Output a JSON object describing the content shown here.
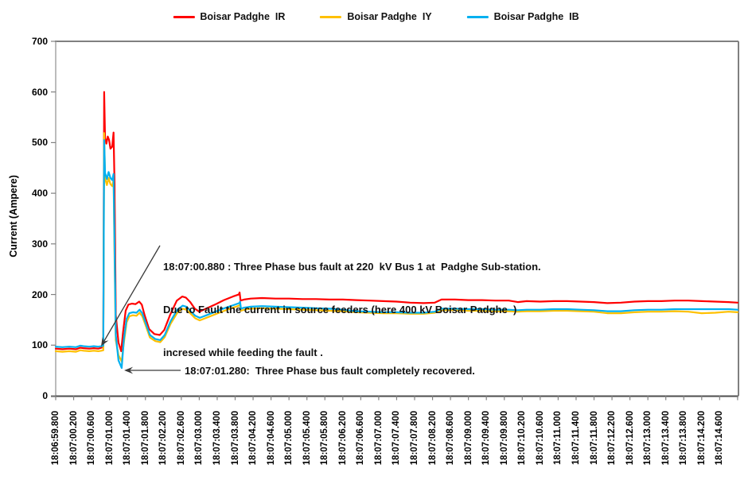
{
  "legend": {
    "items": [
      {
        "label": "Boisar Padghe  IR",
        "color": "#FF0000"
      },
      {
        "label": "Boisar Padghe  IY",
        "color": "#FFC000"
      },
      {
        "label": "Boisar Padghe  IB",
        "color": "#00B0F0"
      }
    ]
  },
  "y_axis": {
    "title": "Current (Ampere)",
    "ticks": [
      "0",
      "100",
      "200",
      "300",
      "400",
      "500",
      "600",
      "700"
    ],
    "min": 0,
    "max": 700
  },
  "x_axis": {
    "labels": [
      "18:06:59.800",
      "18:07:00.200",
      "18:07:00.600",
      "18:07:01.000",
      "18:07:01.400",
      "18:07:01.800",
      "18:07:02.200",
      "18:07:02.600",
      "18:07:03.000",
      "18:07:03.400",
      "18:07:03.800",
      "18:07:04.200",
      "18:07:04.600",
      "18:07:05.000",
      "18:07:05.400",
      "18:07:05.800",
      "18:07:06.200",
      "18:07:06.600",
      "18:07:07.000",
      "18:07:07.400",
      "18:07:07.800",
      "18:07:08.200",
      "18:07:08.600",
      "18:07:09.000",
      "18:07:09.400",
      "18:07:09.800",
      "18:07:10.200",
      "18:07:10.600",
      "18:07:11.000",
      "18:07:11.400",
      "18:07:11.800",
      "18:07:12.200",
      "18:07:12.600",
      "18:07:13.000",
      "18:07:13.400",
      "18:07:13.800",
      "18:07:14.200",
      "18:07:14.600"
    ]
  },
  "annotations": {
    "fault": {
      "line1": "18:07:00.880 : Three Phase bus fault at 220  kV Bus 1 at  Padghe Sub-station.",
      "line2": "Due to Fault the current in source feeders (here 400 kV Boisar Padghe  )",
      "line3": "incresed while feeding the fault ."
    },
    "recovery": {
      "text": "18:07:01.280:  Three Phase bus fault completely recovered."
    }
  },
  "chart_data": {
    "type": "line",
    "title": "",
    "xlabel": "",
    "ylabel": "Current (Ampere)",
    "ylim": [
      0,
      700
    ],
    "grid": false,
    "legend_position": "top-center",
    "x_unit": "seconds offset from 18:06:59.800 (x tick labels every 0.4 s)",
    "events": [
      {
        "time": "18:07:00.880",
        "description": "Three Phase bus fault at 220 kV Bus 1 at Padghe Sub-station; source feeder current increased while feeding the fault"
      },
      {
        "time": "18:07:01.280",
        "description": "Three Phase bus fault completely recovered"
      }
    ],
    "series": [
      {
        "name": "Boisar Padghe  IR",
        "color": "#FF0000",
        "points": [
          [
            0,
            93
          ],
          [
            0.15,
            92
          ],
          [
            0.3,
            93
          ],
          [
            0.45,
            92
          ],
          [
            0.55,
            95
          ],
          [
            0.62,
            94
          ],
          [
            0.75,
            93
          ],
          [
            0.85,
            94
          ],
          [
            0.95,
            93
          ],
          [
            1.02,
            95
          ],
          [
            1.06,
            96
          ],
          [
            1.08,
            600
          ],
          [
            1.1,
            510
          ],
          [
            1.13,
            498
          ],
          [
            1.16,
            512
          ],
          [
            1.19,
            505
          ],
          [
            1.22,
            488
          ],
          [
            1.26,
            492
          ],
          [
            1.29,
            520
          ],
          [
            1.31,
            420
          ],
          [
            1.34,
            160
          ],
          [
            1.4,
            105
          ],
          [
            1.46,
            88
          ],
          [
            1.5,
            125
          ],
          [
            1.56,
            168
          ],
          [
            1.62,
            180
          ],
          [
            1.7,
            182
          ],
          [
            1.78,
            181
          ],
          [
            1.86,
            186
          ],
          [
            1.92,
            180
          ],
          [
            1.98,
            160
          ],
          [
            2.08,
            132
          ],
          [
            2.2,
            122
          ],
          [
            2.32,
            120
          ],
          [
            2.42,
            130
          ],
          [
            2.55,
            160
          ],
          [
            2.7,
            188
          ],
          [
            2.82,
            196
          ],
          [
            2.9,
            194
          ],
          [
            3.0,
            185
          ],
          [
            3.1,
            172
          ],
          [
            3.2,
            166
          ],
          [
            3.35,
            172
          ],
          [
            3.55,
            180
          ],
          [
            3.75,
            189
          ],
          [
            3.95,
            196
          ],
          [
            4.08,
            200
          ],
          [
            4.1,
            204
          ],
          [
            4.12,
            188
          ],
          [
            4.2,
            190
          ],
          [
            4.35,
            192
          ],
          [
            4.6,
            193
          ],
          [
            4.9,
            192
          ],
          [
            5.2,
            192
          ],
          [
            5.5,
            191
          ],
          [
            5.8,
            191
          ],
          [
            6.1,
            190
          ],
          [
            6.4,
            190
          ],
          [
            6.7,
            189
          ],
          [
            7.0,
            188
          ],
          [
            7.3,
            187
          ],
          [
            7.6,
            186
          ],
          [
            7.9,
            184
          ],
          [
            8.2,
            183
          ],
          [
            8.45,
            184
          ],
          [
            8.6,
            190
          ],
          [
            8.9,
            190
          ],
          [
            9.2,
            189
          ],
          [
            9.5,
            189
          ],
          [
            9.8,
            188
          ],
          [
            10.1,
            188
          ],
          [
            10.3,
            185
          ],
          [
            10.5,
            187
          ],
          [
            10.8,
            186
          ],
          [
            11.1,
            187
          ],
          [
            11.4,
            187
          ],
          [
            11.7,
            186
          ],
          [
            12.0,
            185
          ],
          [
            12.3,
            183
          ],
          [
            12.6,
            184
          ],
          [
            12.9,
            186
          ],
          [
            13.2,
            187
          ],
          [
            13.5,
            187
          ],
          [
            13.8,
            188
          ],
          [
            14.1,
            188
          ],
          [
            14.4,
            187
          ],
          [
            14.7,
            186
          ],
          [
            15.0,
            185
          ],
          [
            15.2,
            184
          ]
        ]
      },
      {
        "name": "Boisar Padghe  IY",
        "color": "#FFC000",
        "points": [
          [
            0,
            88
          ],
          [
            0.15,
            87
          ],
          [
            0.3,
            88
          ],
          [
            0.45,
            87
          ],
          [
            0.55,
            90
          ],
          [
            0.62,
            89
          ],
          [
            0.75,
            88
          ],
          [
            0.85,
            89
          ],
          [
            0.95,
            88
          ],
          [
            1.02,
            89
          ],
          [
            1.06,
            90
          ],
          [
            1.08,
            519
          ],
          [
            1.1,
            430
          ],
          [
            1.14,
            416
          ],
          [
            1.18,
            430
          ],
          [
            1.22,
            418
          ],
          [
            1.26,
            414
          ],
          [
            1.29,
            426
          ],
          [
            1.31,
            280
          ],
          [
            1.34,
            110
          ],
          [
            1.4,
            80
          ],
          [
            1.47,
            68
          ],
          [
            1.52,
            105
          ],
          [
            1.58,
            145
          ],
          [
            1.64,
            157
          ],
          [
            1.72,
            159
          ],
          [
            1.8,
            158
          ],
          [
            1.87,
            164
          ],
          [
            1.93,
            157
          ],
          [
            2.0,
            140
          ],
          [
            2.1,
            115
          ],
          [
            2.22,
            108
          ],
          [
            2.33,
            106
          ],
          [
            2.43,
            116
          ],
          [
            2.56,
            142
          ],
          [
            2.71,
            164
          ],
          [
            2.83,
            172
          ],
          [
            2.91,
            170
          ],
          [
            3.01,
            162
          ],
          [
            3.11,
            153
          ],
          [
            3.21,
            149
          ],
          [
            3.36,
            154
          ],
          [
            3.56,
            161
          ],
          [
            3.76,
            168
          ],
          [
            3.96,
            174
          ],
          [
            4.09,
            178
          ],
          [
            4.11,
            181
          ],
          [
            4.13,
            168
          ],
          [
            4.2,
            170
          ],
          [
            4.35,
            172
          ],
          [
            4.6,
            173
          ],
          [
            4.9,
            172
          ],
          [
            5.2,
            171
          ],
          [
            5.5,
            170
          ],
          [
            5.8,
            169
          ],
          [
            6.1,
            168
          ],
          [
            6.4,
            167
          ],
          [
            6.7,
            165
          ],
          [
            7.0,
            164
          ],
          [
            7.3,
            163
          ],
          [
            7.6,
            163
          ],
          [
            7.9,
            162
          ],
          [
            8.2,
            162
          ],
          [
            8.45,
            164
          ],
          [
            8.6,
            169
          ],
          [
            8.9,
            169
          ],
          [
            9.2,
            168
          ],
          [
            9.5,
            168
          ],
          [
            9.8,
            167
          ],
          [
            10.1,
            167
          ],
          [
            10.3,
            166
          ],
          [
            10.5,
            167
          ],
          [
            10.8,
            167
          ],
          [
            11.1,
            168
          ],
          [
            11.4,
            168
          ],
          [
            11.7,
            167
          ],
          [
            12.0,
            166
          ],
          [
            12.3,
            163
          ],
          [
            12.6,
            163
          ],
          [
            12.9,
            165
          ],
          [
            13.2,
            166
          ],
          [
            13.5,
            166
          ],
          [
            13.8,
            167
          ],
          [
            14.1,
            166
          ],
          [
            14.4,
            163
          ],
          [
            14.7,
            164
          ],
          [
            15.0,
            166
          ],
          [
            15.2,
            165
          ]
        ]
      },
      {
        "name": "Boisar Padghe  IB",
        "color": "#00B0F0",
        "points": [
          [
            0,
            97
          ],
          [
            0.15,
            96
          ],
          [
            0.3,
            97
          ],
          [
            0.45,
            96
          ],
          [
            0.55,
            99
          ],
          [
            0.62,
            98
          ],
          [
            0.75,
            97
          ],
          [
            0.85,
            98
          ],
          [
            0.95,
            97
          ],
          [
            1.02,
            98
          ],
          [
            1.06,
            99
          ],
          [
            1.08,
            505
          ],
          [
            1.1,
            440
          ],
          [
            1.14,
            428
          ],
          [
            1.18,
            442
          ],
          [
            1.22,
            430
          ],
          [
            1.26,
            426
          ],
          [
            1.29,
            438
          ],
          [
            1.31,
            300
          ],
          [
            1.34,
            120
          ],
          [
            1.4,
            70
          ],
          [
            1.47,
            55
          ],
          [
            1.52,
            112
          ],
          [
            1.58,
            152
          ],
          [
            1.64,
            163
          ],
          [
            1.72,
            165
          ],
          [
            1.8,
            164
          ],
          [
            1.87,
            170
          ],
          [
            1.93,
            163
          ],
          [
            2.0,
            145
          ],
          [
            2.1,
            120
          ],
          [
            2.22,
            112
          ],
          [
            2.33,
            110
          ],
          [
            2.43,
            120
          ],
          [
            2.56,
            147
          ],
          [
            2.71,
            170
          ],
          [
            2.83,
            178
          ],
          [
            2.91,
            176
          ],
          [
            3.01,
            167
          ],
          [
            3.11,
            158
          ],
          [
            3.21,
            154
          ],
          [
            3.36,
            159
          ],
          [
            3.56,
            166
          ],
          [
            3.76,
            173
          ],
          [
            3.96,
            179
          ],
          [
            4.09,
            183
          ],
          [
            4.11,
            186
          ],
          [
            4.13,
            172
          ],
          [
            4.2,
            174
          ],
          [
            4.35,
            176
          ],
          [
            4.6,
            177
          ],
          [
            4.9,
            176
          ],
          [
            5.2,
            175
          ],
          [
            5.5,
            174
          ],
          [
            5.8,
            173
          ],
          [
            6.1,
            172
          ],
          [
            6.4,
            170
          ],
          [
            6.7,
            167
          ],
          [
            7.0,
            166
          ],
          [
            7.3,
            165
          ],
          [
            7.6,
            165
          ],
          [
            7.9,
            164
          ],
          [
            8.2,
            164
          ],
          [
            8.45,
            166
          ],
          [
            8.6,
            172
          ],
          [
            8.9,
            172
          ],
          [
            9.2,
            171
          ],
          [
            9.5,
            171
          ],
          [
            9.8,
            170
          ],
          [
            10.1,
            170
          ],
          [
            10.3,
            169
          ],
          [
            10.5,
            170
          ],
          [
            10.8,
            170
          ],
          [
            11.1,
            171
          ],
          [
            11.4,
            171
          ],
          [
            11.7,
            170
          ],
          [
            12.0,
            169
          ],
          [
            12.3,
            167
          ],
          [
            12.6,
            167
          ],
          [
            12.9,
            169
          ],
          [
            13.2,
            170
          ],
          [
            13.5,
            170
          ],
          [
            13.8,
            171
          ],
          [
            14.1,
            171
          ],
          [
            14.4,
            171
          ],
          [
            14.7,
            171
          ],
          [
            15.0,
            171
          ],
          [
            15.2,
            170
          ]
        ]
      }
    ]
  }
}
